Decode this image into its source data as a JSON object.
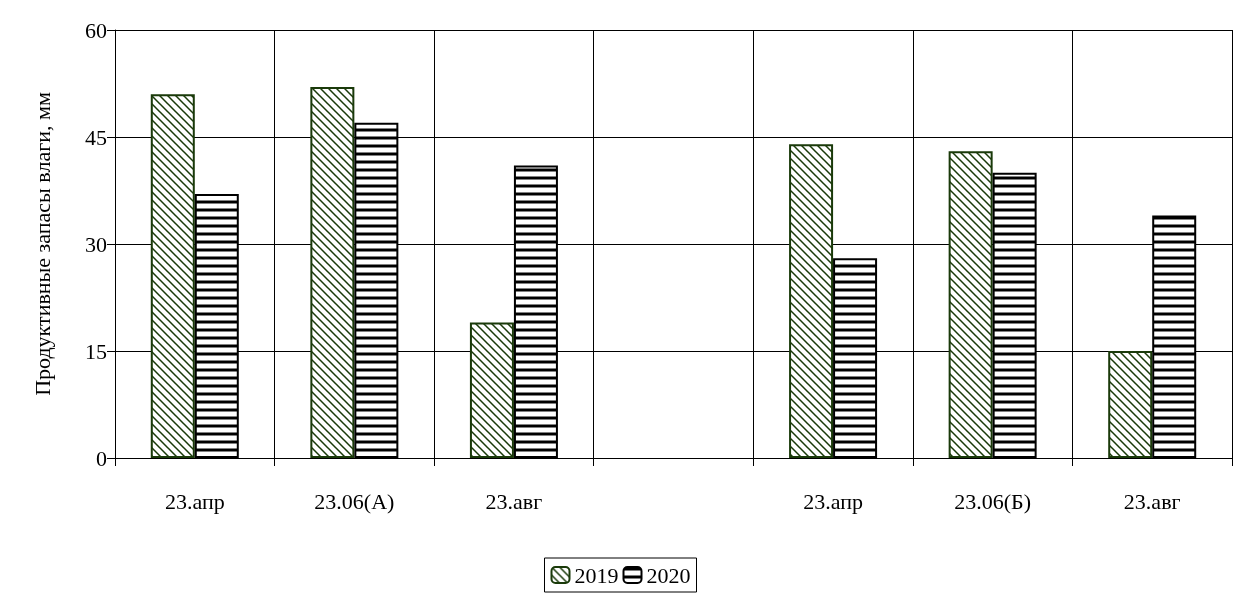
{
  "chart_data": {
    "type": "bar",
    "ylabel": "Продуктивные запасы влаги, мм",
    "categories": [
      "23.апр",
      "23.06(А)",
      "23.авг",
      null,
      "23.апр",
      "23.06(Б)",
      "23.авг"
    ],
    "series": [
      {
        "name": "2019",
        "color": "#1a3a0a",
        "values": [
          51,
          52,
          19,
          null,
          44,
          43,
          15
        ]
      },
      {
        "name": "2020",
        "color": "#000000",
        "values": [
          37,
          47,
          41,
          null,
          28,
          40,
          34
        ]
      }
    ],
    "ylim": [
      0,
      60
    ],
    "yticks": [
      0,
      15,
      30,
      45,
      60
    ],
    "grid": true,
    "legend": "bottom"
  }
}
